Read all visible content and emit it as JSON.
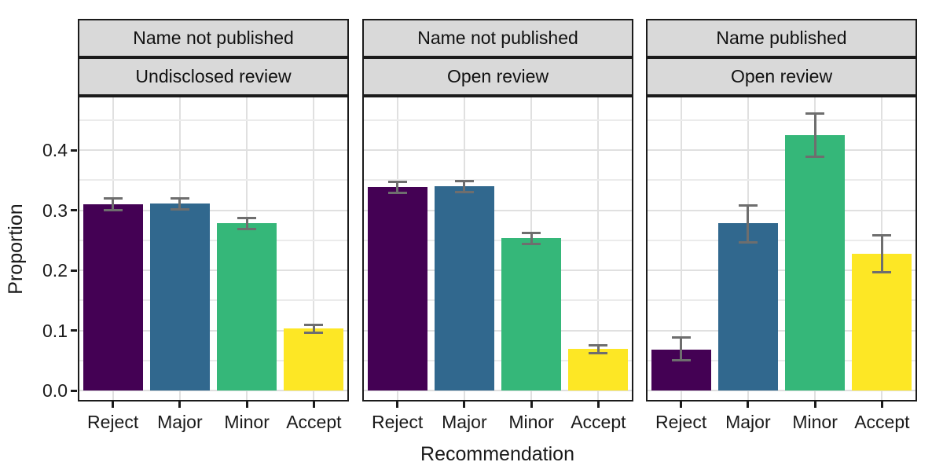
{
  "chart_data": {
    "type": "bar",
    "title": "",
    "xlabel": "Recommendation",
    "ylabel": "Proportion",
    "categories": [
      "Reject",
      "Major",
      "Minor",
      "Accept"
    ],
    "ytick_labels": [
      "0.0",
      "0.1",
      "0.2",
      "0.3",
      "0.4"
    ],
    "ytick_values": [
      0,
      0.1,
      0.2,
      0.3,
      0.4
    ],
    "ylim": [
      0,
      0.49
    ],
    "legend_position": "none",
    "grid": {
      "horizontal_major_step": 0.1,
      "horizontal_minor_step": 0.05,
      "vertical": "major lines at category centers"
    },
    "bar_colors": {
      "Reject": "#440154",
      "Major": "#31688E",
      "Minor": "#35B779",
      "Accept": "#FDE725"
    },
    "panels": [
      {
        "strip_top": "Name not published",
        "strip_bottom": "Undisclosed review",
        "values": [
          0.31,
          0.311,
          0.278,
          0.103
        ],
        "err_low": [
          0.301,
          0.302,
          0.269,
          0.097
        ],
        "err_high": [
          0.32,
          0.32,
          0.287,
          0.11
        ]
      },
      {
        "strip_top": "Name not published",
        "strip_bottom": "Open review",
        "values": [
          0.339,
          0.34,
          0.254,
          0.069
        ],
        "err_low": [
          0.33,
          0.331,
          0.245,
          0.063
        ],
        "err_high": [
          0.348,
          0.349,
          0.263,
          0.076
        ]
      },
      {
        "strip_top": "Name published",
        "strip_bottom": "Open review",
        "values": [
          0.068,
          0.278,
          0.425,
          0.228
        ],
        "err_low": [
          0.051,
          0.247,
          0.39,
          0.197
        ],
        "err_high": [
          0.089,
          0.309,
          0.461,
          0.259
        ]
      }
    ]
  },
  "colors": {
    "background": "#ffffff",
    "strip_fill": "#d9d9d9",
    "panel_border": "#1b1b1b",
    "grid_major": "#e0e0e0",
    "grid_minor": "#ebebeb",
    "errorbar": "#6e6e6e",
    "text": "#1a1a1a"
  }
}
